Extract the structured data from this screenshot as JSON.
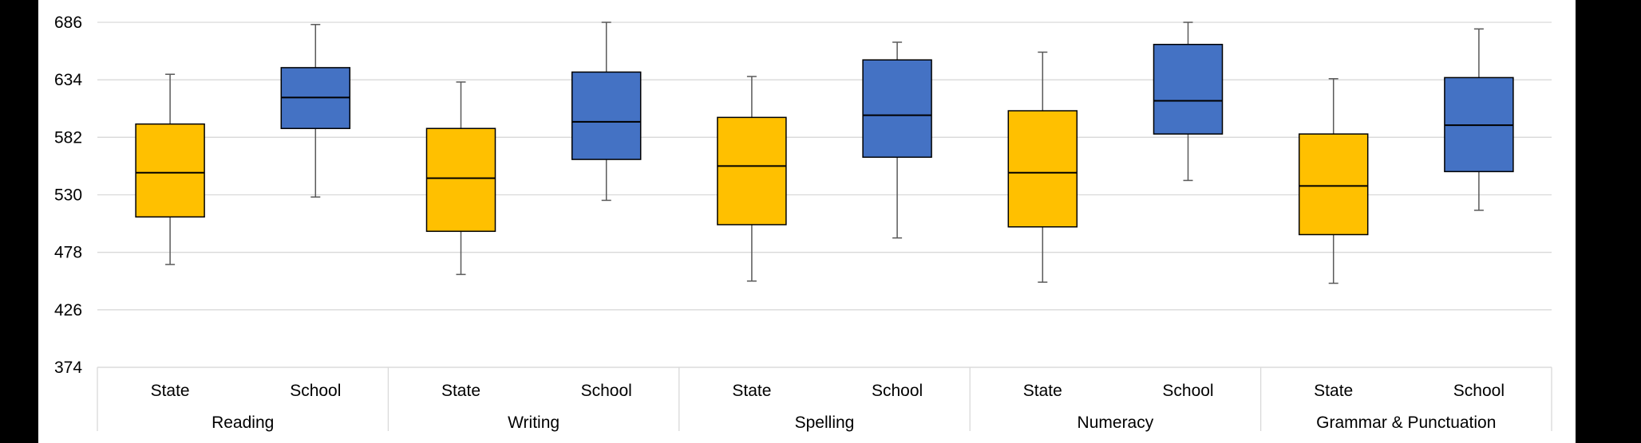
{
  "chart_data": {
    "type": "boxplot",
    "title": "",
    "xlabel": "",
    "ylabel": "",
    "ylim": [
      374,
      686
    ],
    "yticks": [
      374,
      426,
      478,
      530,
      582,
      634,
      686
    ],
    "yticks_labels": [
      "374",
      "426",
      "478",
      "530",
      "582",
      "634",
      "686"
    ],
    "grid": true,
    "colors": {
      "State": "#FFC000",
      "School": "#4472C4"
    },
    "groups": [
      {
        "name": "Reading",
        "boxes": [
          {
            "label": "State",
            "min": 467,
            "q1": 510,
            "median": 550,
            "q3": 594,
            "max": 639
          },
          {
            "label": "School",
            "min": 528,
            "q1": 590,
            "median": 618,
            "q3": 645,
            "max": 684
          }
        ]
      },
      {
        "name": "Writing",
        "boxes": [
          {
            "label": "State",
            "min": 458,
            "q1": 497,
            "median": 545,
            "q3": 590,
            "max": 632
          },
          {
            "label": "School",
            "min": 525,
            "q1": 562,
            "median": 596,
            "q3": 641,
            "max": 686
          }
        ]
      },
      {
        "name": "Spelling",
        "boxes": [
          {
            "label": "State",
            "min": 452,
            "q1": 503,
            "median": 556,
            "q3": 600,
            "max": 637
          },
          {
            "label": "School",
            "min": 491,
            "q1": 564,
            "median": 602,
            "q3": 652,
            "max": 668
          }
        ]
      },
      {
        "name": "Numeracy",
        "boxes": [
          {
            "label": "State",
            "min": 451,
            "q1": 501,
            "median": 550,
            "q3": 606,
            "max": 659
          },
          {
            "label": "School",
            "min": 543,
            "q1": 585,
            "median": 615,
            "q3": 666,
            "max": 686
          }
        ]
      },
      {
        "name": "Grammar & Punctuation",
        "boxes": [
          {
            "label": "State",
            "min": 450,
            "q1": 494,
            "median": 538,
            "q3": 585,
            "max": 635
          },
          {
            "label": "School",
            "min": 516,
            "q1": 551,
            "median": 593,
            "q3": 636,
            "max": 680
          }
        ]
      }
    ]
  }
}
